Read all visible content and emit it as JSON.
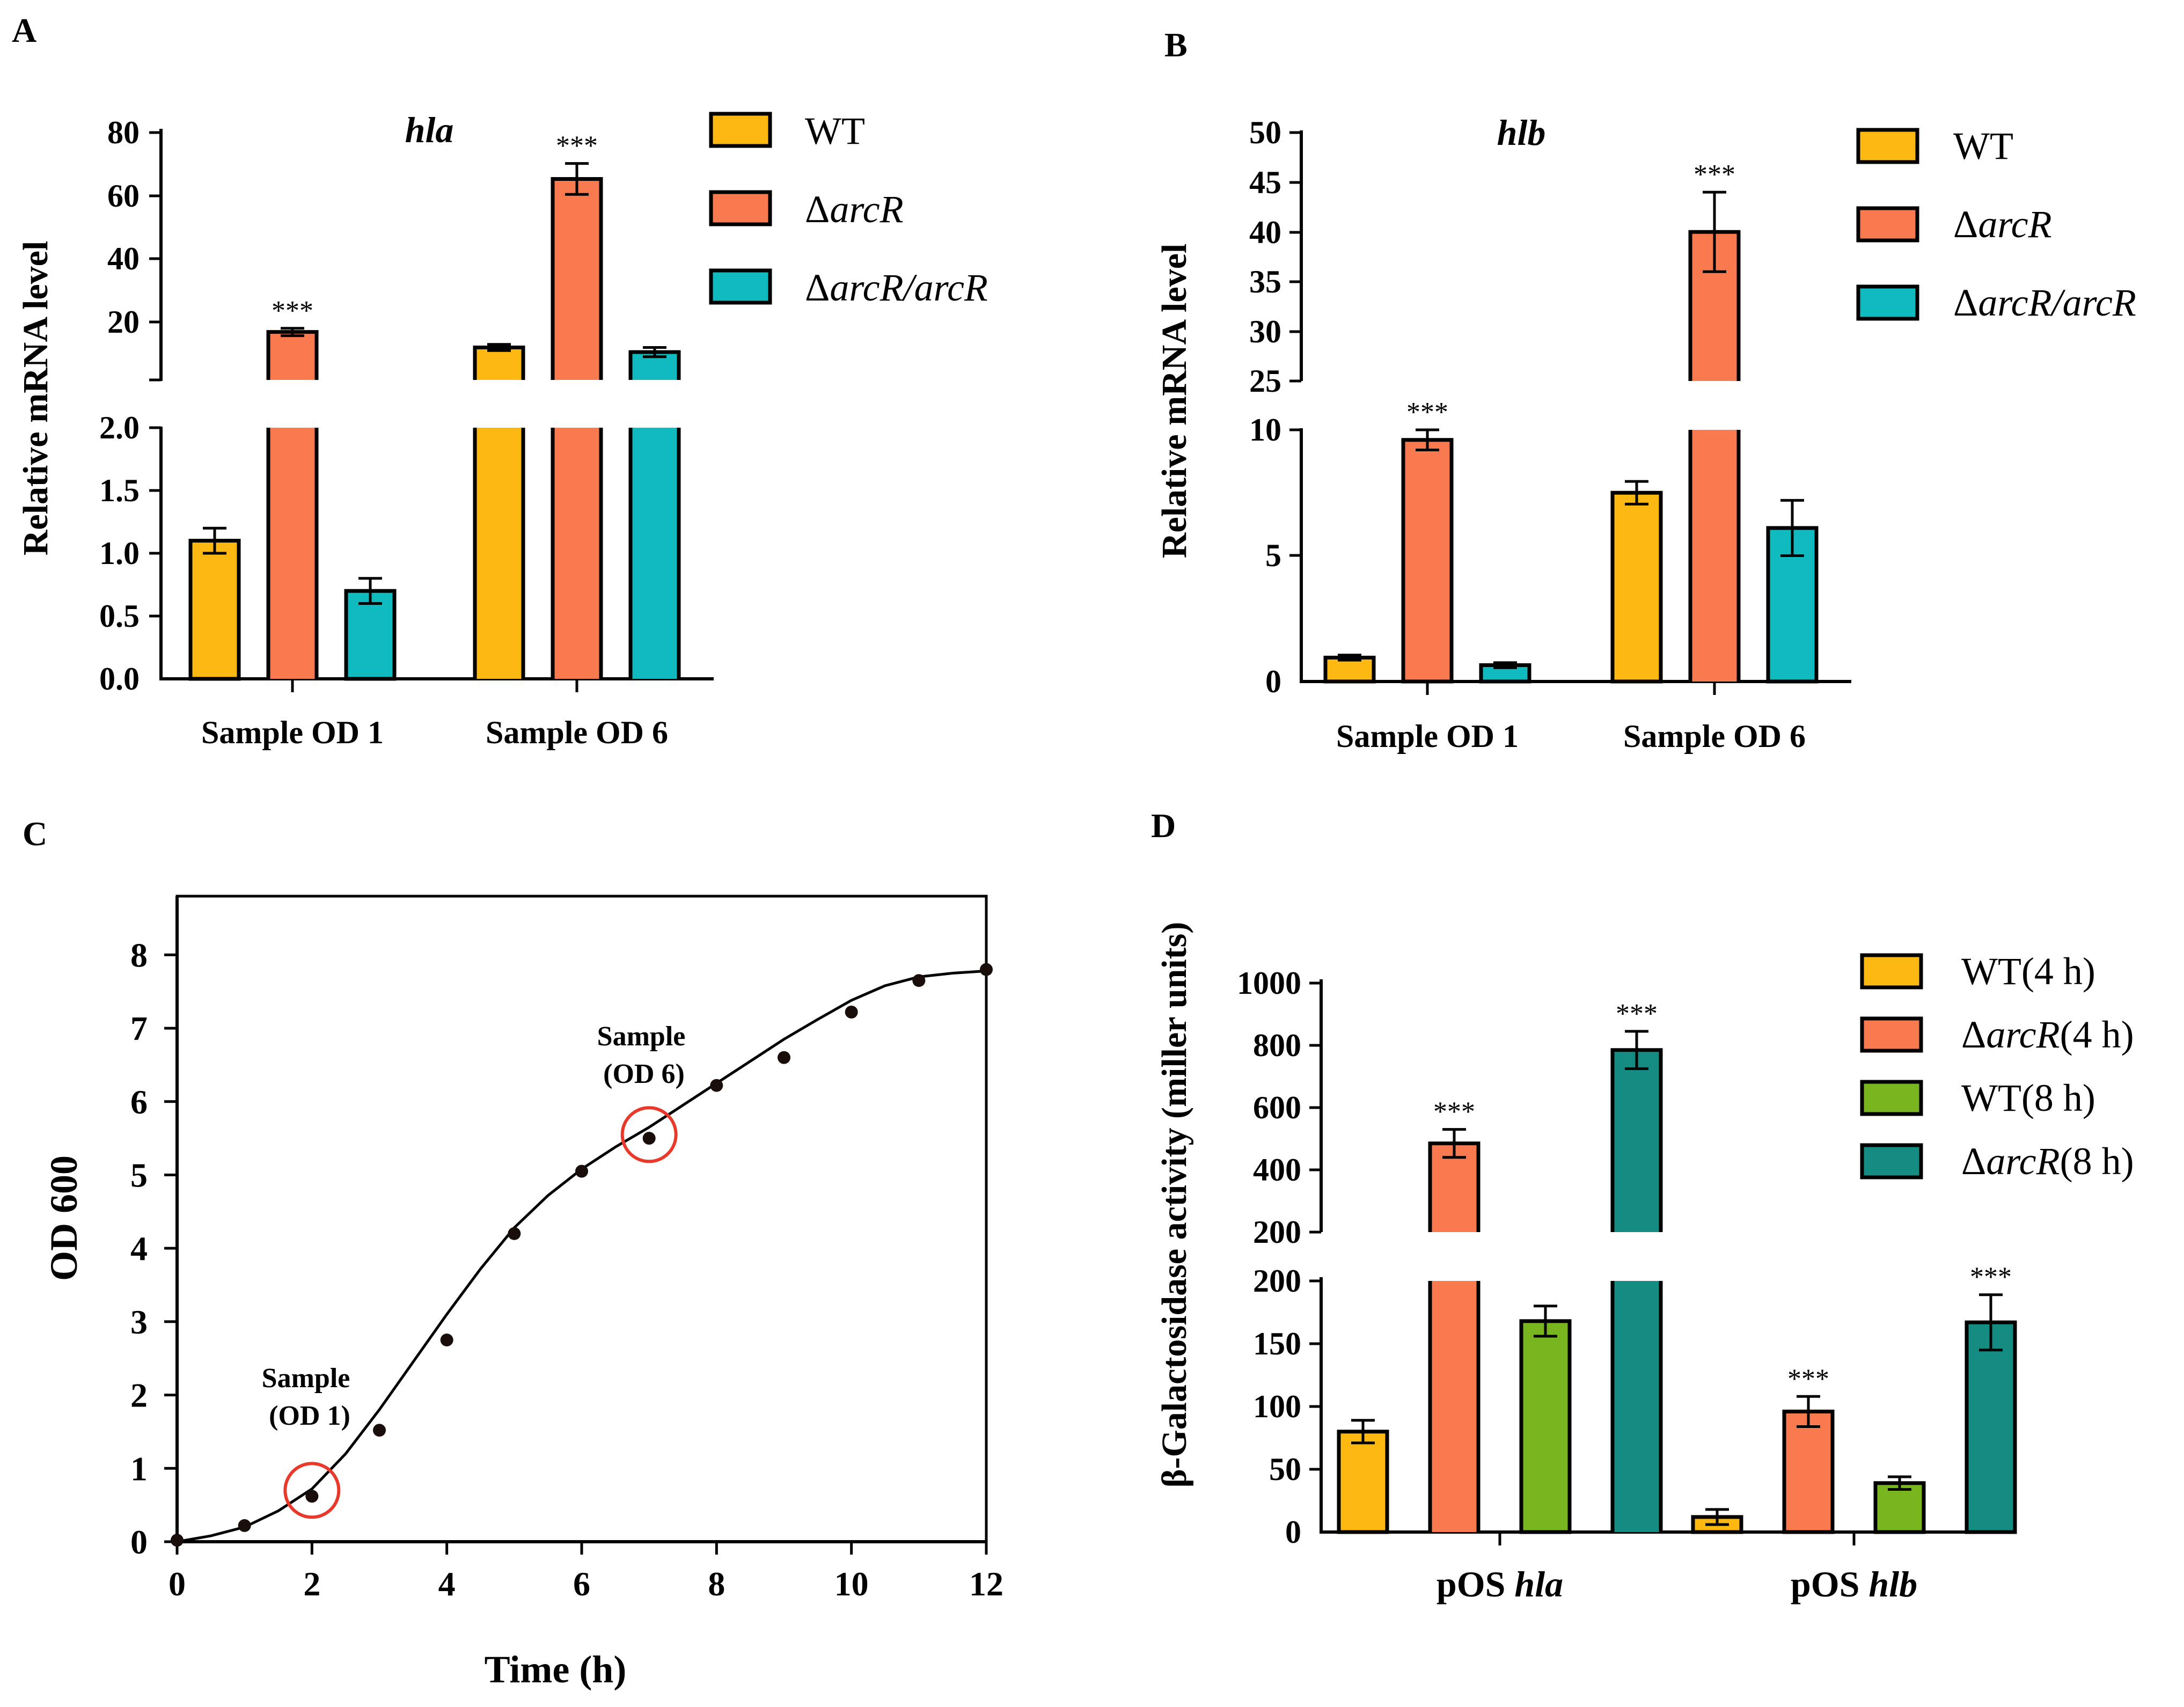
{
  "colors": {
    "wt": "#FDB912",
    "arcR": "#F97A4E",
    "comp": "#0FBBBE",
    "wt8": "#78B51E",
    "arcR8": "#148C82",
    "circle": "#E8392A"
  },
  "panels": {
    "A": {
      "letter": "A",
      "gene": "hla",
      "ylabel": "Relative mRNA level",
      "categories": [
        "Sample OD 1",
        "Sample OD 6"
      ],
      "upper_ticks": [
        "80",
        "60",
        "40",
        "20"
      ],
      "lower_ticks": [
        "2.0",
        "1.5",
        "1.0",
        "0.5",
        "0.0"
      ],
      "stars": "***"
    },
    "B": {
      "letter": "B",
      "gene": "hlb",
      "ylabel": "Relative mRNA level",
      "categories": [
        "Sample OD 1",
        "Sample OD 6"
      ],
      "upper_ticks": [
        "50",
        "45",
        "40",
        "35",
        "30",
        "25"
      ],
      "lower_ticks": [
        "10",
        "5",
        "0"
      ],
      "stars": "***"
    },
    "C": {
      "letter": "C",
      "xlabel": "Time (h)",
      "ylabel": "OD 600",
      "x_ticks": [
        "0",
        "2",
        "4",
        "6",
        "8",
        "10",
        "12"
      ],
      "y_ticks": [
        "0",
        "1",
        "2",
        "3",
        "4",
        "5",
        "6",
        "7",
        "8"
      ],
      "ann1_line1": "Sample",
      "ann1_line2": "(OD 1)",
      "ann2_line1": "Sample",
      "ann2_line2": "(OD 6)"
    },
    "D": {
      "letter": "D",
      "ylabel": "β-Galactosidase  activity (miller units)",
      "cat1_prefix": "pOS ",
      "cat1_gene": "hla",
      "cat2_prefix": "pOS ",
      "cat2_gene": "hlb",
      "upper_ticks": [
        "1000",
        "800",
        "600",
        "400",
        "200"
      ],
      "lower_ticks": [
        "200",
        "150",
        "100",
        "50",
        "0"
      ],
      "stars": "***"
    }
  },
  "legend_ab": {
    "wt": "WT",
    "arcR_delta": "Δ",
    "arcR_gene": "arcR",
    "comp_delta": "Δ",
    "comp_gene": "arcR/arcR"
  },
  "legend_d": {
    "wt4": "WT(4 h)",
    "arcR4_delta": "Δ",
    "arcR4_gene": "arcR",
    "arcR4_suffix": "(4 h)",
    "wt8": "WT(8 h)",
    "arcR8_delta": "Δ",
    "arcR8_gene": "arcR",
    "arcR8_suffix": "(8 h)"
  },
  "chart_data": [
    {
      "type": "bar",
      "panel": "A",
      "title": "hla",
      "ylabel": "Relative mRNA level",
      "categories": [
        "Sample OD 1",
        "Sample OD 6"
      ],
      "y_axis_break": {
        "lower": [
          0,
          2.0
        ],
        "upper": [
          0,
          80
        ]
      },
      "series": [
        {
          "name": "WT",
          "values": [
            1.1,
            10.5
          ],
          "errors": [
            0.1,
            1.0
          ]
        },
        {
          "name": "ΔarcR",
          "values": [
            15.5,
            65
          ],
          "errors": [
            1.2,
            5
          ],
          "significance": [
            "***",
            "***"
          ]
        },
        {
          "name": "ΔarcR/arcR",
          "values": [
            0.7,
            9.0
          ],
          "errors": [
            0.1,
            1.5
          ]
        }
      ]
    },
    {
      "type": "bar",
      "panel": "B",
      "title": "hlb",
      "ylabel": "Relative mRNA level",
      "categories": [
        "Sample OD 1",
        "Sample OD 6"
      ],
      "y_axis_break": {
        "lower": [
          0,
          10
        ],
        "upper": [
          25,
          50
        ]
      },
      "series": [
        {
          "name": "WT",
          "values": [
            0.95,
            7.5
          ],
          "errors": [
            0.1,
            0.45
          ]
        },
        {
          "name": "ΔarcR",
          "values": [
            9.6,
            40
          ],
          "errors": [
            0.4,
            4
          ],
          "significance": [
            "***",
            "***"
          ]
        },
        {
          "name": "ΔarcR/arcR",
          "values": [
            0.65,
            6.1
          ],
          "errors": [
            0.1,
            1.1
          ]
        }
      ]
    },
    {
      "type": "scatter",
      "panel": "C",
      "xlabel": "Time (h)",
      "ylabel": "OD 600",
      "xlim": [
        0,
        12
      ],
      "ylim": [
        0,
        8.8
      ],
      "points": {
        "x": [
          0,
          1,
          2,
          3,
          4,
          5,
          6,
          7,
          8,
          9,
          10,
          11,
          12
        ],
        "y": [
          0.02,
          0.22,
          0.62,
          1.52,
          2.75,
          4.2,
          5.05,
          5.5,
          6.22,
          6.6,
          7.22,
          7.65,
          7.8
        ]
      },
      "fit_curve": {
        "x": [
          0,
          0.5,
          1,
          1.5,
          2,
          2.5,
          3,
          3.5,
          4,
          4.5,
          5,
          5.5,
          6,
          6.5,
          7,
          7.5,
          8,
          8.5,
          9,
          9.5,
          10,
          10.5,
          11,
          11.5,
          12
        ],
        "y": [
          0,
          0.08,
          0.2,
          0.42,
          0.72,
          1.2,
          1.8,
          2.45,
          3.1,
          3.72,
          4.28,
          4.72,
          5.08,
          5.38,
          5.65,
          5.95,
          6.25,
          6.55,
          6.85,
          7.12,
          7.38,
          7.58,
          7.7,
          7.75,
          7.78
        ]
      },
      "highlighted_samples": [
        {
          "label": "Sample (OD 1)",
          "x": 2,
          "y": 0.7
        },
        {
          "label": "Sample (OD 6)",
          "x": 7,
          "y": 5.55
        }
      ]
    },
    {
      "type": "bar",
      "panel": "D",
      "ylabel": "β-Galactosidase  activity (miller units)",
      "categories": [
        "pOS hla",
        "pOS hlb"
      ],
      "y_axis_break": {
        "lower": [
          0,
          200
        ],
        "upper": [
          200,
          1000
        ]
      },
      "series": [
        {
          "name": "WT(4 h)",
          "values": [
            80,
            12
          ],
          "errors": [
            9,
            6
          ]
        },
        {
          "name": "ΔarcR(4 h)",
          "values": [
            485,
            96
          ],
          "errors": [
            45,
            12
          ],
          "significance": [
            "***",
            "***"
          ]
        },
        {
          "name": "WT(8 h)",
          "values": [
            168,
            39
          ],
          "errors": [
            12,
            5
          ]
        },
        {
          "name": "ΔarcR(8 h)",
          "values": [
            785,
            167
          ],
          "errors": [
            60,
            22
          ],
          "significance": [
            "***",
            "***"
          ]
        }
      ]
    }
  ]
}
